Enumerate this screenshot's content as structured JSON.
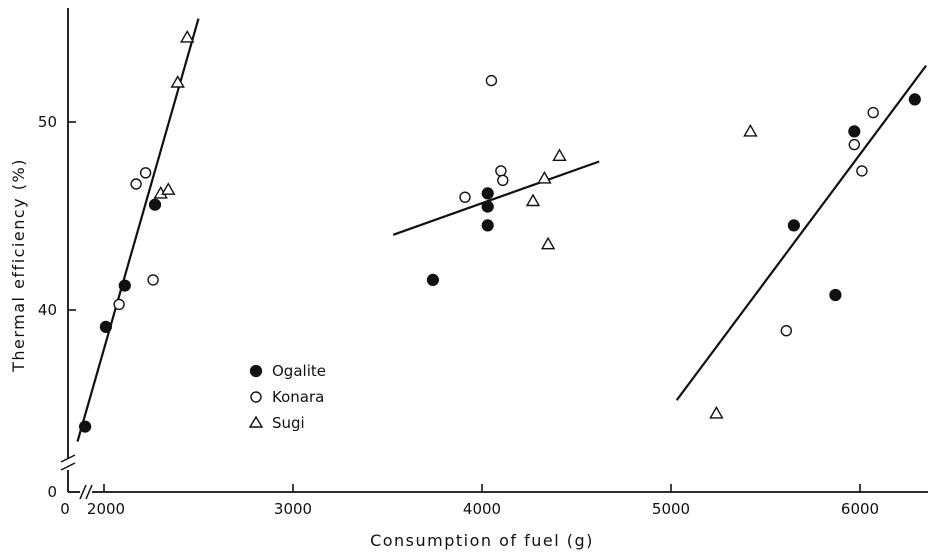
{
  "chart_data": {
    "type": "scatter",
    "xlabel": "Consumption of fuel (g)",
    "ylabel": "Thermal efficiency (%)",
    "x_ticks": [
      {
        "value": 2000,
        "label": "2000"
      },
      {
        "value": 3000,
        "label": "3000"
      },
      {
        "value": 4000,
        "label": "4000"
      },
      {
        "value": 5000,
        "label": "5000"
      },
      {
        "value": 6000,
        "label": "6000"
      }
    ],
    "x_zero_label": "0",
    "y_ticks": [
      {
        "value": 40,
        "label": "40"
      },
      {
        "value": 50,
        "label": "50"
      }
    ],
    "y_zero_label": "0",
    "axis_breaks": true,
    "grid": false,
    "legend_position": "center-left",
    "xlim": [
      1800,
      6350
    ],
    "ylim": [
      31.5,
      56
    ],
    "series": [
      {
        "name": "Ogalite",
        "marker": "filled-circle",
        "points": [
          {
            "x": 1900,
            "y": 33.8
          },
          {
            "x": 2010,
            "y": 39.1
          },
          {
            "x": 2110,
            "y": 41.3
          },
          {
            "x": 2270,
            "y": 45.6
          },
          {
            "x": 3740,
            "y": 41.6
          },
          {
            "x": 4030,
            "y": 46.2
          },
          {
            "x": 4030,
            "y": 45.5
          },
          {
            "x": 4030,
            "y": 44.5
          },
          {
            "x": 5650,
            "y": 44.5
          },
          {
            "x": 5870,
            "y": 40.8
          },
          {
            "x": 5970,
            "y": 49.5
          },
          {
            "x": 6290,
            "y": 51.2
          }
        ]
      },
      {
        "name": "Konara",
        "marker": "open-circle",
        "points": [
          {
            "x": 2080,
            "y": 40.3
          },
          {
            "x": 2170,
            "y": 46.7
          },
          {
            "x": 2220,
            "y": 47.3
          },
          {
            "x": 2260,
            "y": 41.6
          },
          {
            "x": 3910,
            "y": 46.0
          },
          {
            "x": 4050,
            "y": 52.2
          },
          {
            "x": 4100,
            "y": 47.4
          },
          {
            "x": 4110,
            "y": 46.9
          },
          {
            "x": 5610,
            "y": 38.9
          },
          {
            "x": 5970,
            "y": 48.8
          },
          {
            "x": 6010,
            "y": 47.4
          },
          {
            "x": 6070,
            "y": 50.5
          }
        ]
      },
      {
        "name": "Sugi",
        "marker": "open-triangle",
        "points": [
          {
            "x": 2300,
            "y": 46.2
          },
          {
            "x": 2340,
            "y": 46.4
          },
          {
            "x": 2390,
            "y": 52.1
          },
          {
            "x": 2440,
            "y": 54.5
          },
          {
            "x": 4270,
            "y": 45.8
          },
          {
            "x": 4330,
            "y": 47.0
          },
          {
            "x": 4350,
            "y": 43.5
          },
          {
            "x": 4410,
            "y": 48.2
          },
          {
            "x": 5240,
            "y": 34.5
          },
          {
            "x": 5420,
            "y": 49.5
          }
        ]
      }
    ],
    "fit_lines": [
      {
        "from": {
          "x": 1860,
          "y": 33.0
        },
        "to": {
          "x": 2500,
          "y": 55.5
        }
      },
      {
        "from": {
          "x": 3530,
          "y": 44.0
        },
        "to": {
          "x": 4620,
          "y": 47.9
        }
      },
      {
        "from": {
          "x": 5030,
          "y": 35.2
        },
        "to": {
          "x": 6350,
          "y": 53.0
        }
      }
    ]
  }
}
